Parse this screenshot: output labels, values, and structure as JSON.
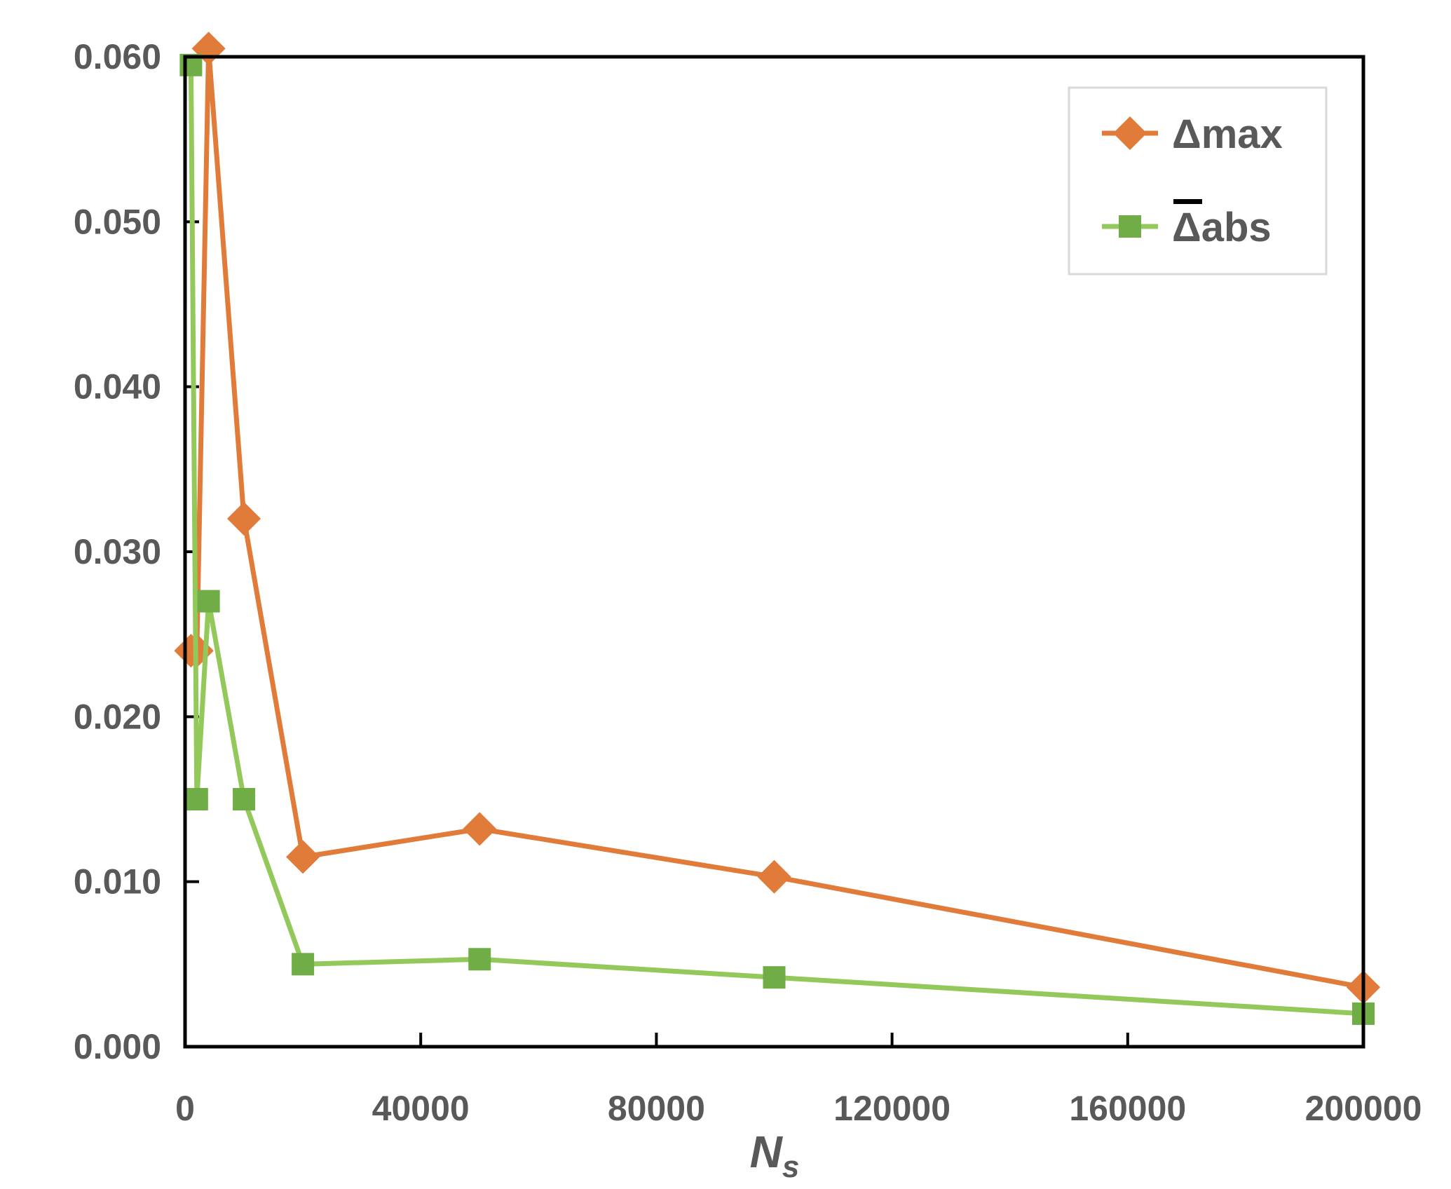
{
  "chart_data": {
    "type": "line",
    "title": "",
    "xlabel": "N",
    "xlabel_subscript": "s",
    "ylabel": "",
    "xlim": [
      0,
      200000
    ],
    "ylim": [
      0,
      0.06
    ],
    "x_ticks": [
      "0",
      "40000",
      "80000",
      "120000",
      "160000",
      "200000"
    ],
    "y_ticks": [
      "0.000",
      "0.010",
      "0.020",
      "0.030",
      "0.040",
      "0.050",
      "0.060"
    ],
    "grid": false,
    "legend_position": "top-right",
    "series": [
      {
        "name": "Δmax",
        "color": "#E07B39",
        "marker": "diamond",
        "x": [
          1000,
          2000,
          4000,
          10000,
          20000,
          50000,
          100000,
          200000
        ],
        "y": [
          0.024,
          0.024,
          0.0605,
          0.032,
          0.0115,
          0.0132,
          0.0103,
          0.0036
        ]
      },
      {
        "name": "Δabs",
        "overline": true,
        "color": "#92C95A",
        "marker_color": "#70AD47",
        "marker": "square",
        "x": [
          1000,
          2000,
          4000,
          10000,
          20000,
          50000,
          100000,
          200000
        ],
        "y": [
          0.0595,
          0.015,
          0.027,
          0.015,
          0.005,
          0.0053,
          0.0042,
          0.002
        ]
      }
    ]
  }
}
